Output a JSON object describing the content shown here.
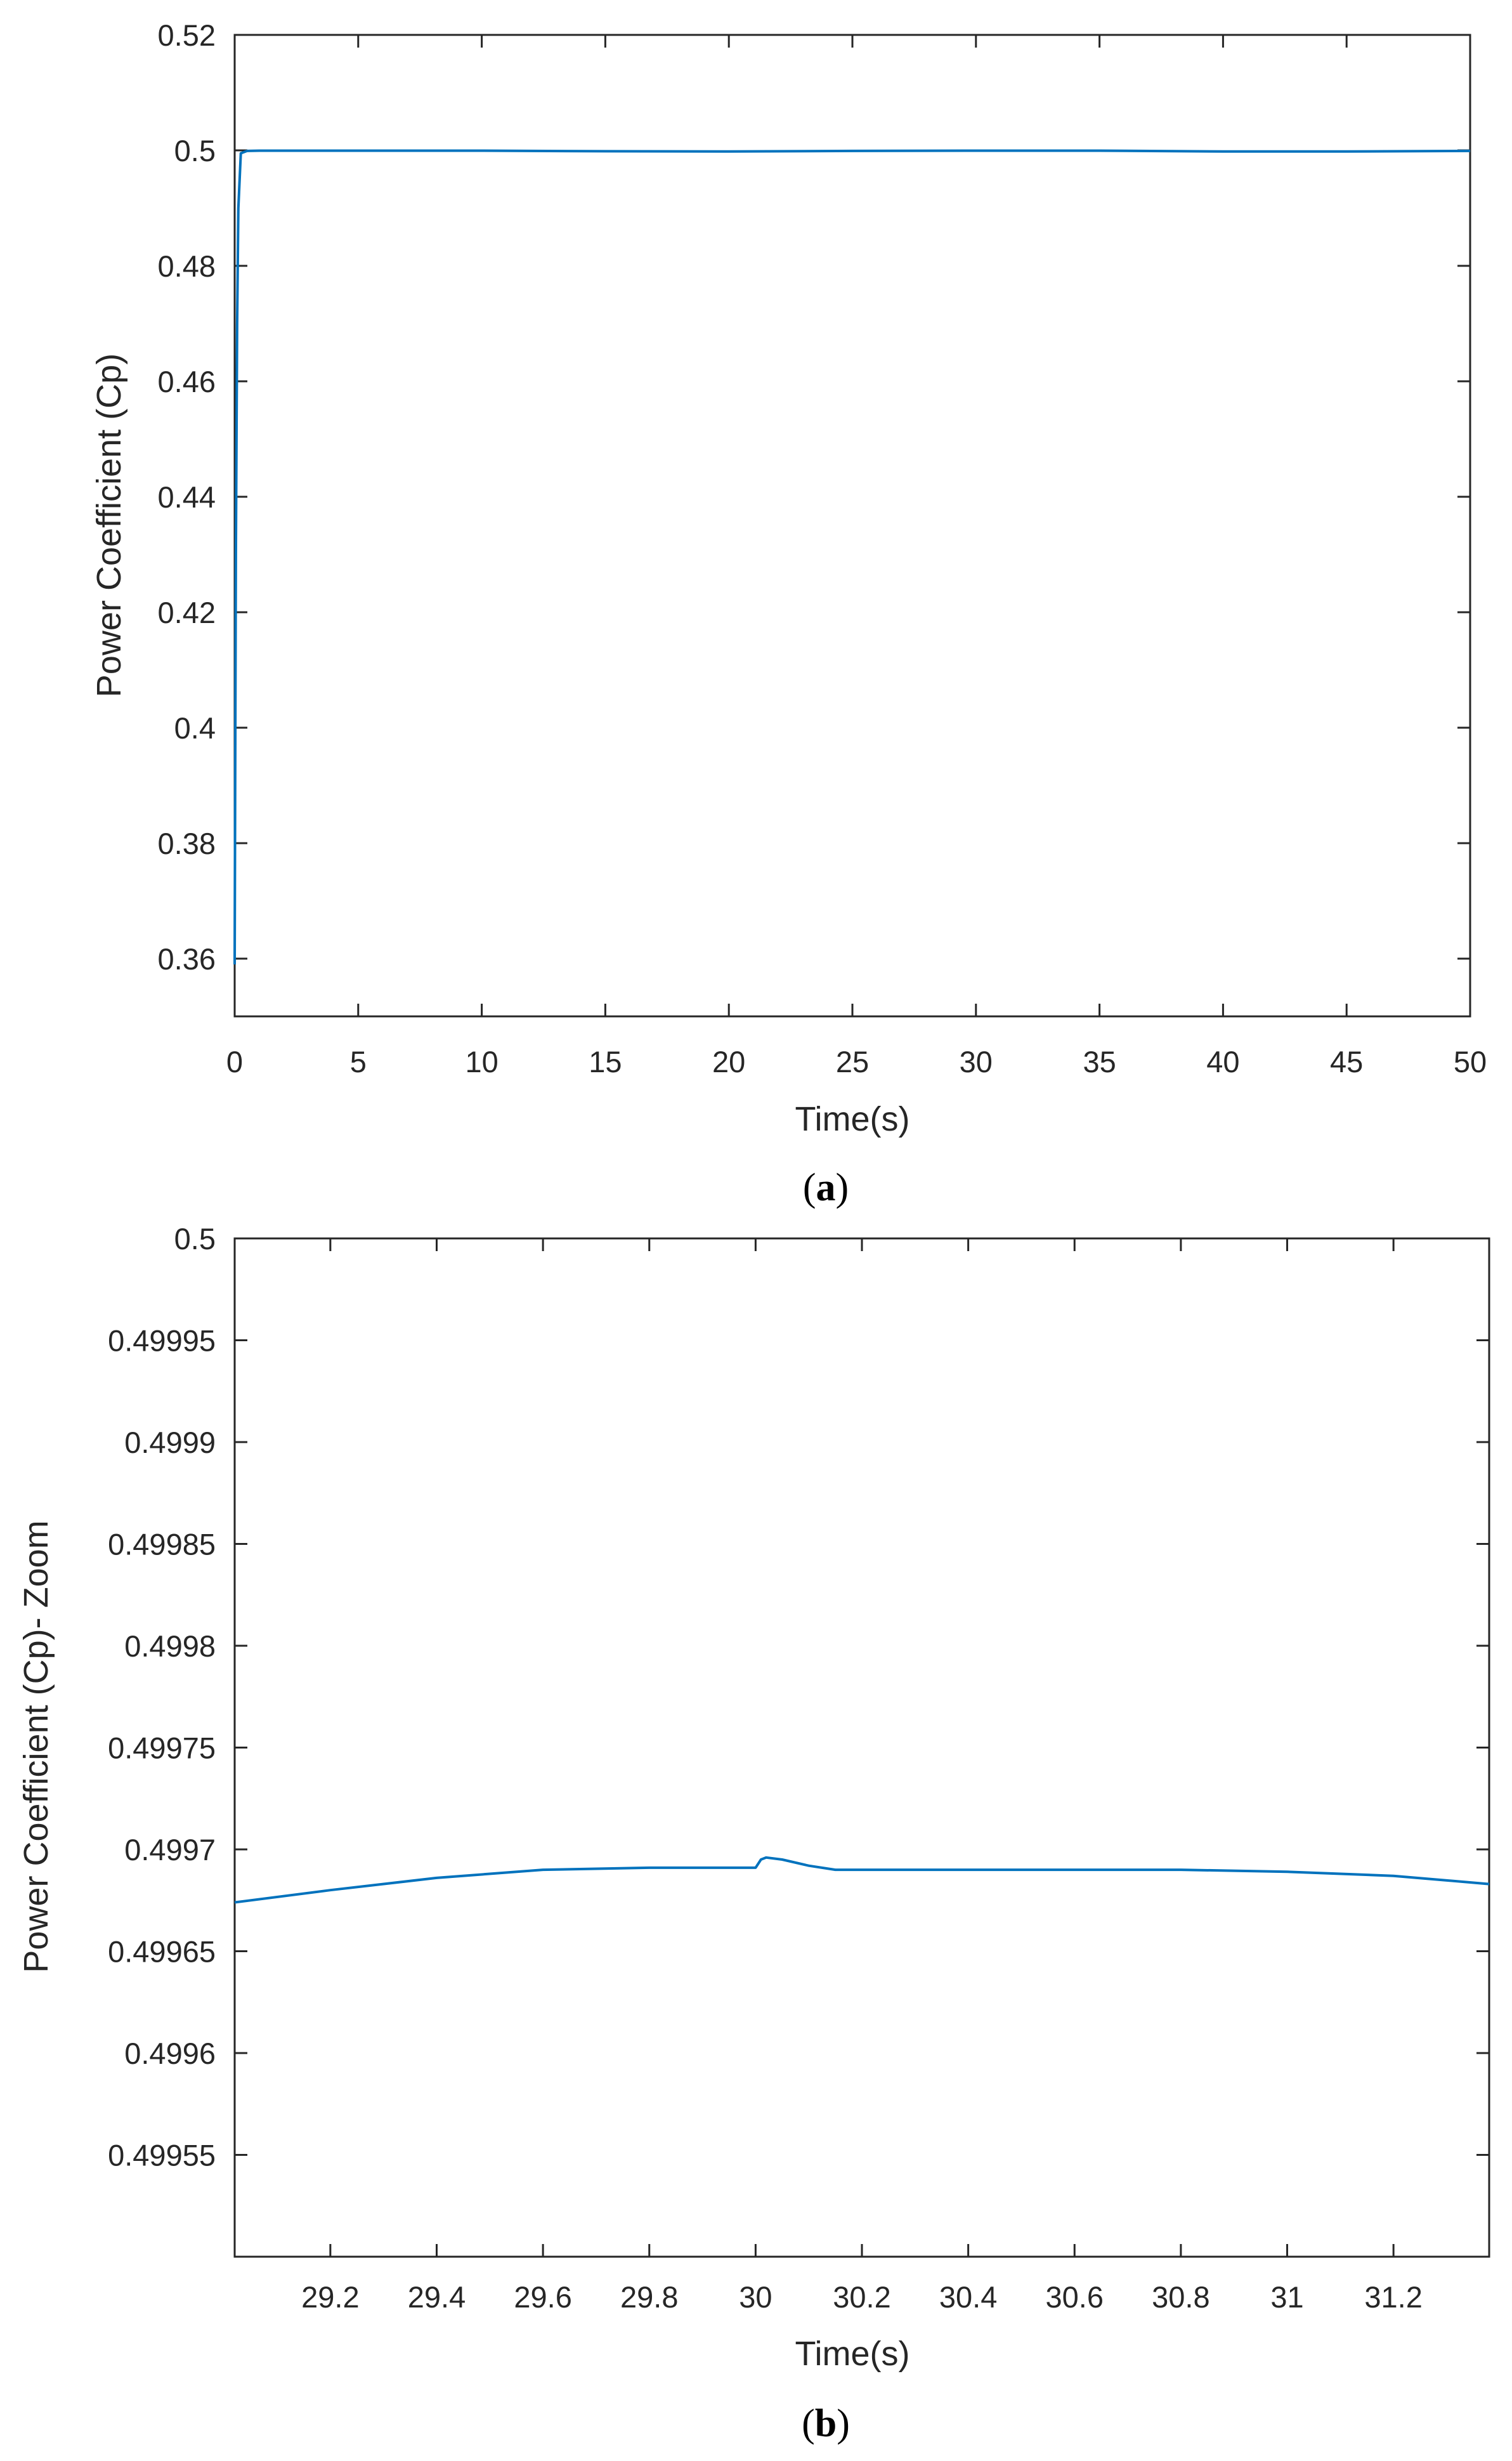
{
  "chart_data": [
    {
      "type": "line",
      "panel_label": "a",
      "xlabel": "Time(s)",
      "ylabel": "Power Coefficient (Cp)",
      "xlim": [
        0,
        50
      ],
      "ylim": [
        0.35,
        0.52
      ],
      "xticks": [
        "0",
        "5",
        "10",
        "15",
        "20",
        "25",
        "30",
        "35",
        "40",
        "45",
        "50"
      ],
      "yticks": [
        "0.36",
        "0.38",
        "0.4",
        "0.42",
        "0.44",
        "0.46",
        "0.48",
        "0.5",
        "0.52"
      ],
      "grid": false,
      "line_color": "#0072BD",
      "series": [
        {
          "x": [
            0,
            0.02,
            0.05,
            0.1,
            0.15,
            0.25,
            0.5,
            1,
            5,
            10,
            15,
            20,
            25,
            30,
            35,
            40,
            45,
            50
          ],
          "y": [
            0.359,
            0.39,
            0.43,
            0.47,
            0.49,
            0.4995,
            0.4999,
            0.49995,
            0.49995,
            0.49995,
            0.49985,
            0.4998,
            0.4999,
            0.49995,
            0.49995,
            0.4998,
            0.4998,
            0.4999
          ]
        }
      ]
    },
    {
      "type": "line",
      "panel_label": "b",
      "xlabel": "Time(s)",
      "ylabel": "Power Coefficient (Cp)- Zoom",
      "xlim": [
        29.02,
        31.38
      ],
      "ylim": [
        0.4995,
        0.5
      ],
      "xticks": [
        "29.2",
        "29.4",
        "29.6",
        "29.8",
        "30",
        "30.2",
        "30.4",
        "30.6",
        "30.8",
        "31",
        "31.2"
      ],
      "yticks": [
        "0.49955",
        "0.4996",
        "0.49965",
        "0.4997",
        "0.49975",
        "0.4998",
        "0.49985",
        "0.4999",
        "0.49995",
        "0.5"
      ],
      "grid": false,
      "line_color": "#0072BD",
      "series": [
        {
          "x": [
            29.02,
            29.2,
            29.4,
            29.6,
            29.8,
            30.0,
            30.01,
            30.02,
            30.05,
            30.1,
            30.15,
            30.2,
            30.4,
            30.6,
            30.8,
            31.0,
            31.2,
            31.38
          ],
          "y": [
            0.499674,
            0.49968,
            0.499686,
            0.49969,
            0.499691,
            0.499691,
            0.499695,
            0.499696,
            0.499695,
            0.499692,
            0.49969,
            0.49969,
            0.49969,
            0.49969,
            0.49969,
            0.499689,
            0.499687,
            0.499683
          ]
        }
      ]
    }
  ],
  "captions": {
    "a": "a",
    "b": "b"
  }
}
